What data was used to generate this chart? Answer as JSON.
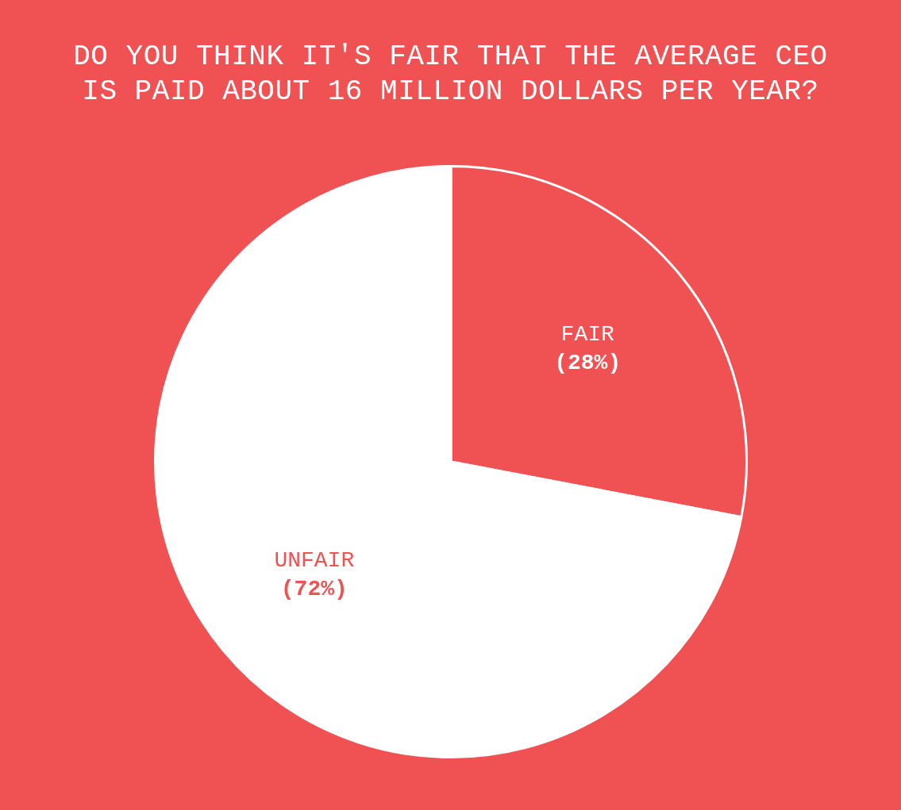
{
  "chart_data": {
    "type": "pie",
    "title": "DO YOU THINK IT'S FAIR THAT THE AVERAGE CEO IS PAID ABOUT 16 MILLION DOLLARS PER YEAR?",
    "categories": [
      "FAIR",
      "UNFAIR"
    ],
    "values": [
      28,
      72
    ],
    "colors": [
      "#f05152",
      "#ffffff"
    ],
    "value_labels": [
      "(28%)",
      "(72%)"
    ],
    "legend": false
  }
}
